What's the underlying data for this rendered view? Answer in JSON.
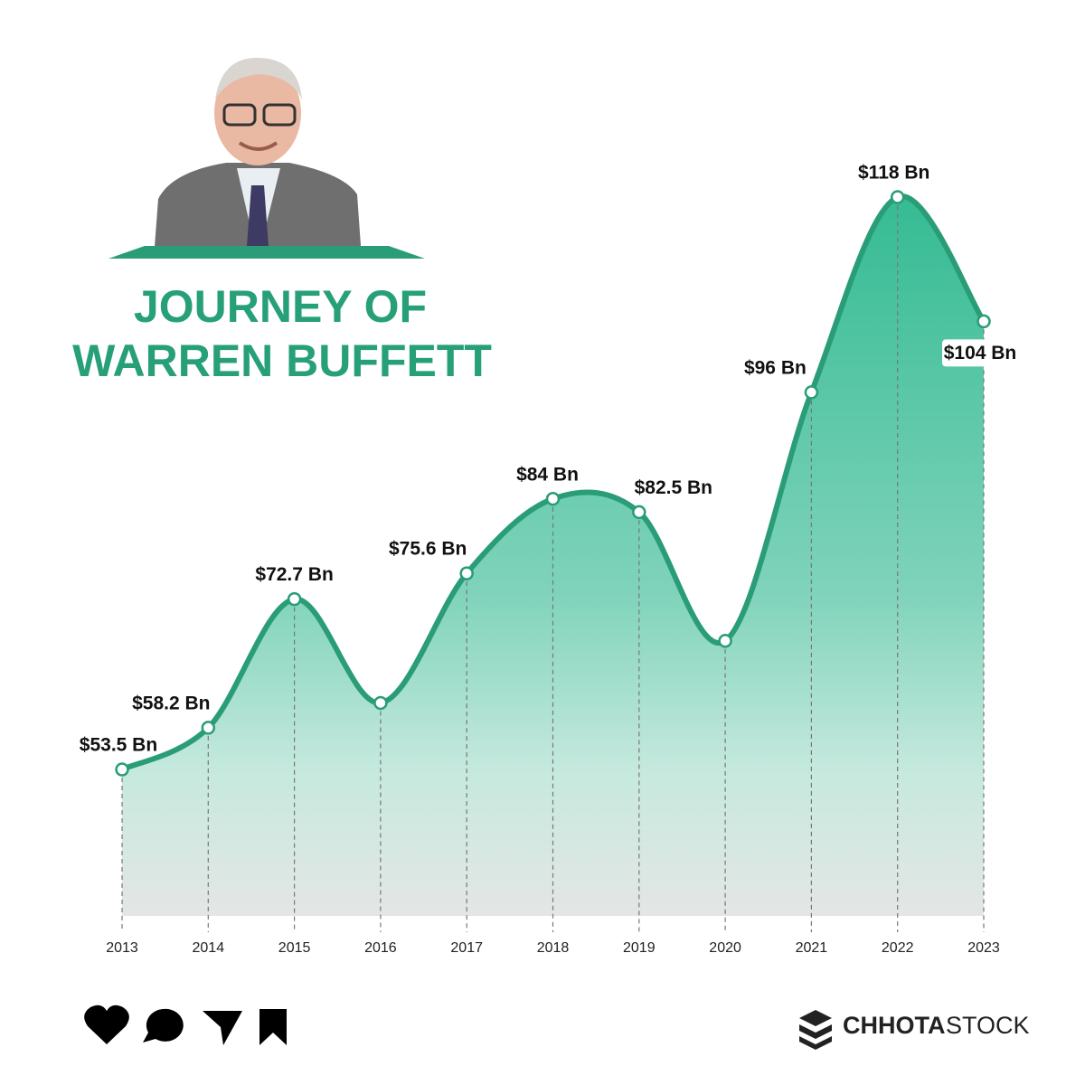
{
  "chart_data": {
    "type": "area",
    "title_lines": [
      "JOURNEY OF",
      "WARREN BUFFETT"
    ],
    "categories": [
      "2013",
      "2014",
      "2015",
      "2016",
      "2017",
      "2018",
      "2019",
      "2020",
      "2021",
      "2022",
      "2023"
    ],
    "values": [
      53.5,
      58.2,
      72.7,
      61,
      75.6,
      84,
      82.5,
      68,
      96,
      118,
      104
    ],
    "value_labels": [
      "$53.5 Bn",
      "$58.2 Bn",
      "$72.7 Bn",
      null,
      "$75.6 Bn",
      "$84 Bn",
      "$82.5 Bn",
      null,
      "$96 Bn",
      "$118 Bn",
      "$104 Bn"
    ],
    "color": "#2a9d78",
    "ylim": [
      37,
      123.4
    ]
  },
  "brand": {
    "bold": "CHHOTA",
    "light": "STOCK"
  }
}
